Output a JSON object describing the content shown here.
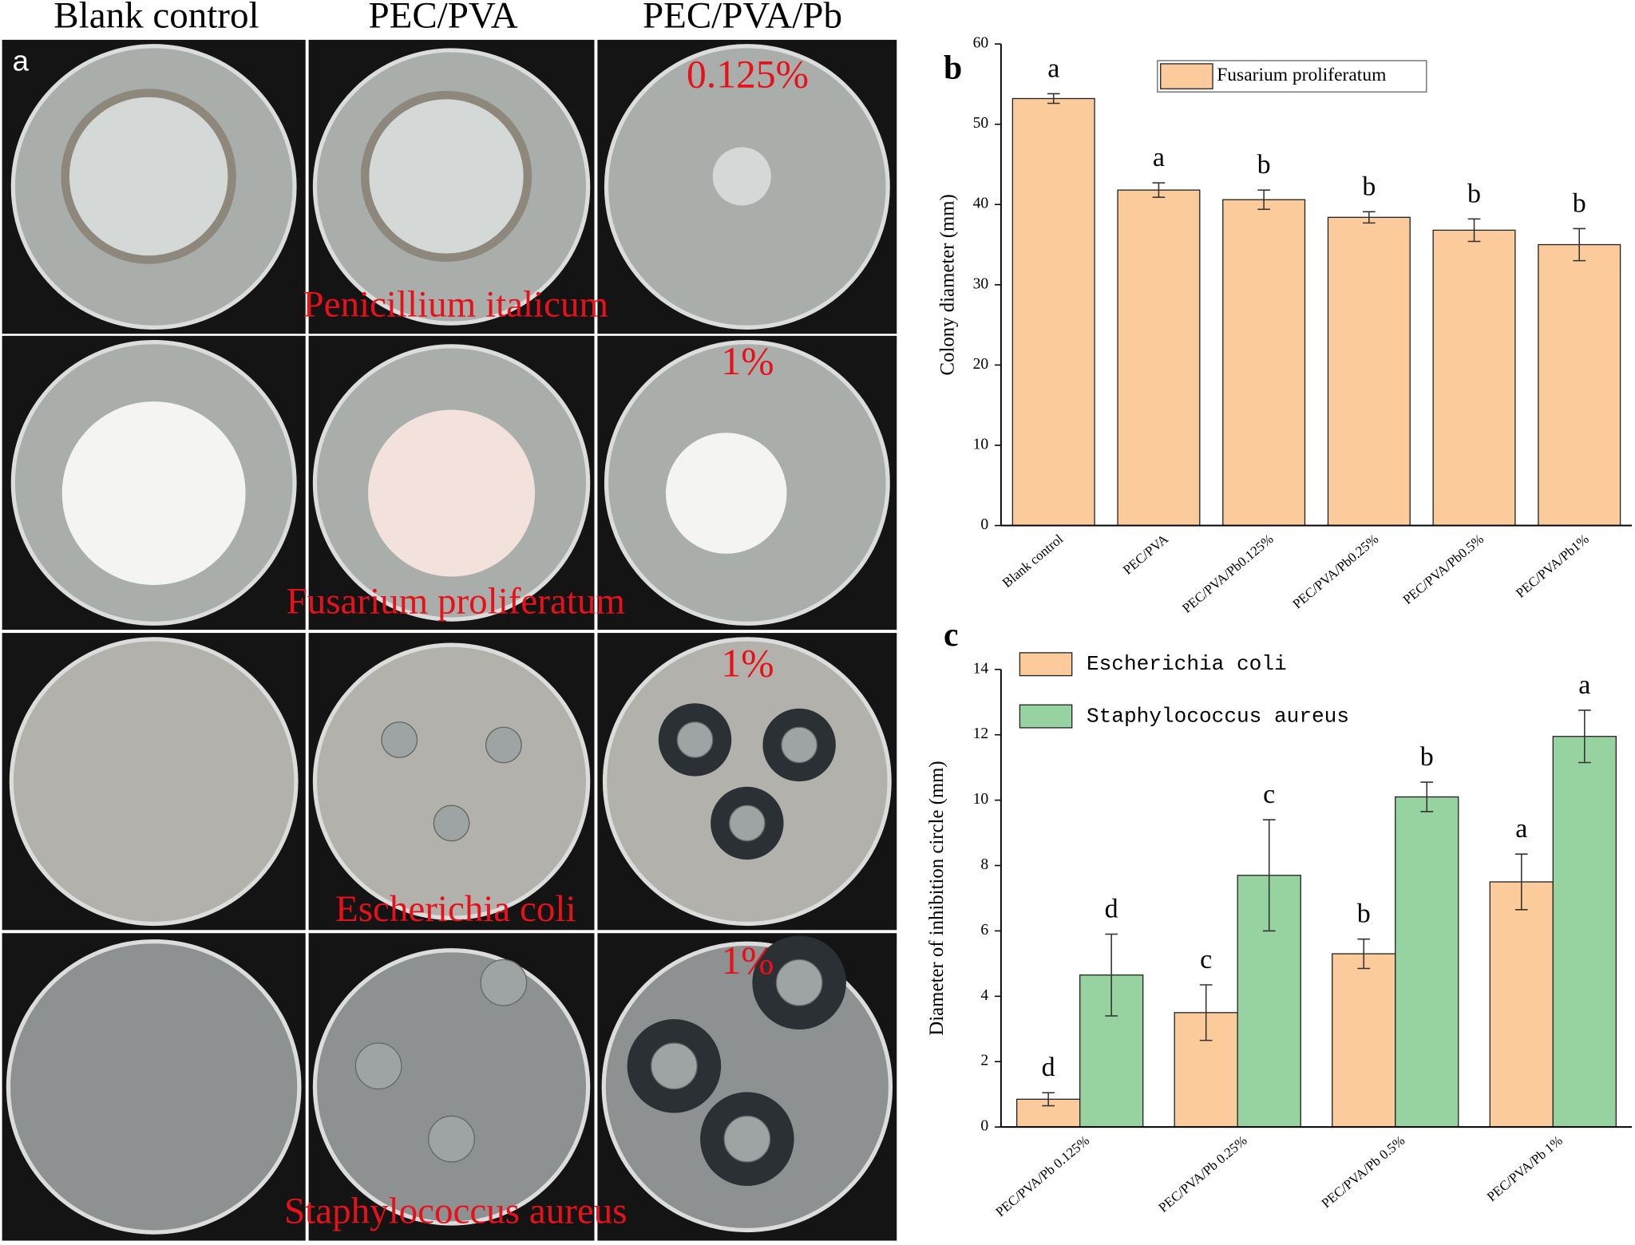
{
  "panel_a": {
    "label": "a",
    "columns": [
      "Blank control",
      "PEC/PVA",
      "PEC/PVA/Pb"
    ],
    "concentrations": [
      "0.125%",
      "1%",
      "1%",
      "1%"
    ],
    "organisms": [
      "Penicillium italicum",
      "Fusarium proliferatum",
      "Escherichia coli",
      "Staphylococcus aureus"
    ]
  },
  "chart_data": [
    {
      "type": "bar",
      "panel_label": "b",
      "ylabel": "Colony diameter (mm)",
      "categories": [
        "Blank control",
        "PEC/PVA",
        "PEC/PVA/Pb0.125%",
        "PEC/PVA/Pb0.25%",
        "PEC/PVA/Pb0.5%",
        "PEC/PVA/Pb1%"
      ],
      "series": [
        {
          "name": "Fusarium proliferatum",
          "color": "#fccb9c",
          "values": [
            53.2,
            41.8,
            40.6,
            38.4,
            36.8,
            35.0
          ],
          "errors": [
            0.6,
            0.9,
            1.2,
            0.7,
            1.4,
            2.0
          ],
          "annotations": [
            "a",
            "a",
            "b",
            "b",
            "b",
            "b"
          ]
        }
      ],
      "ylim": [
        0,
        60
      ],
      "yticks": [
        0,
        10,
        20,
        30,
        40,
        50,
        60
      ],
      "legend": "top-right"
    },
    {
      "type": "bar",
      "panel_label": "c",
      "ylabel": "Diameter of inhibition circle (mm)",
      "categories": [
        "PEC/PVA/Pb 0.125%",
        "PEC/PVA/Pb 0.25%",
        "PEC/PVA/Pb 0.5%",
        "PEC/PVA/Pb 1%"
      ],
      "series": [
        {
          "name": "Escherichia coli",
          "color": "#fccb9c",
          "values": [
            0.85,
            3.5,
            5.3,
            7.5
          ],
          "errors": [
            0.2,
            0.85,
            0.45,
            0.85
          ],
          "annotations": [
            "d",
            "c",
            "b",
            "a"
          ]
        },
        {
          "name": "Staphylococcus aureus",
          "color": "#96d3a0",
          "values": [
            4.65,
            7.7,
            10.1,
            11.95
          ],
          "errors": [
            1.25,
            1.7,
            0.45,
            0.8
          ],
          "annotations": [
            "d",
            "c",
            "b",
            "a"
          ]
        }
      ],
      "ylim": [
        0,
        14
      ],
      "yticks": [
        0,
        2,
        4,
        6,
        8,
        10,
        12,
        14
      ],
      "legend": "top-left"
    }
  ]
}
